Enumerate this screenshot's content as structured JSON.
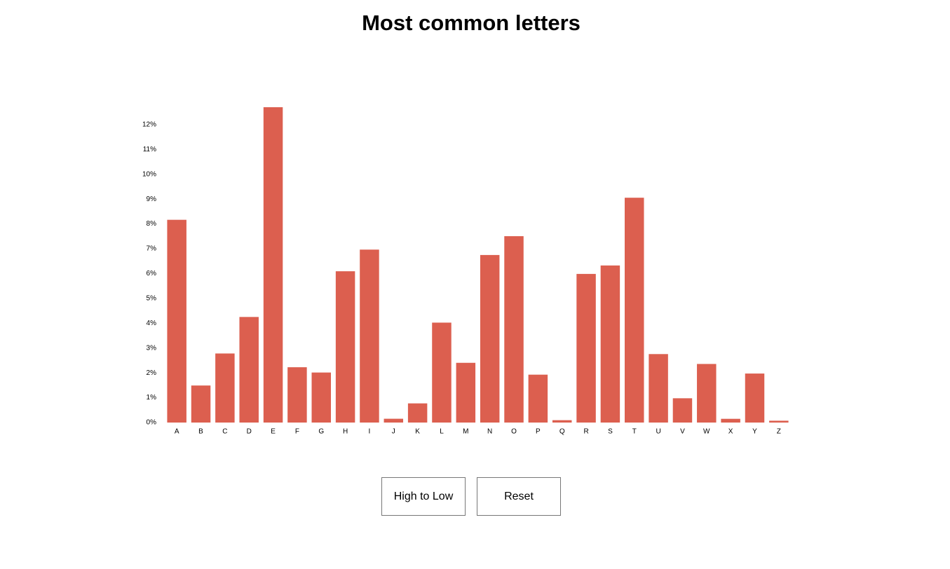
{
  "chart_data": {
    "type": "bar",
    "title": "Most common letters",
    "categories": [
      "A",
      "B",
      "C",
      "D",
      "E",
      "F",
      "G",
      "H",
      "I",
      "J",
      "K",
      "L",
      "M",
      "N",
      "O",
      "P",
      "Q",
      "R",
      "S",
      "T",
      "U",
      "V",
      "W",
      "X",
      "Y",
      "Z"
    ],
    "values": [
      8.167,
      1.492,
      2.782,
      4.253,
      12.702,
      2.228,
      2.015,
      6.094,
      6.966,
      0.153,
      0.772,
      4.025,
      2.406,
      6.749,
      7.507,
      1.929,
      0.095,
      5.987,
      6.327,
      9.056,
      2.758,
      0.978,
      2.36,
      0.15,
      1.974,
      0.074
    ],
    "color": "#dc5f4f",
    "ylim": [
      0,
      12.702
    ],
    "yticks": [
      {
        "value": 0,
        "label": "0%"
      },
      {
        "value": 1,
        "label": "1%"
      },
      {
        "value": 2,
        "label": "2%"
      },
      {
        "value": 3,
        "label": "3%"
      },
      {
        "value": 4,
        "label": "4%"
      },
      {
        "value": 5,
        "label": "5%"
      },
      {
        "value": 6,
        "label": "6%"
      },
      {
        "value": 7,
        "label": "7%"
      },
      {
        "value": 8,
        "label": "8%"
      },
      {
        "value": 9,
        "label": "9%"
      },
      {
        "value": 10,
        "label": "10%"
      },
      {
        "value": 11,
        "label": "11%"
      },
      {
        "value": 12,
        "label": "12%"
      }
    ],
    "grid": false
  },
  "buttons": [
    "High to Low",
    "Reset"
  ]
}
